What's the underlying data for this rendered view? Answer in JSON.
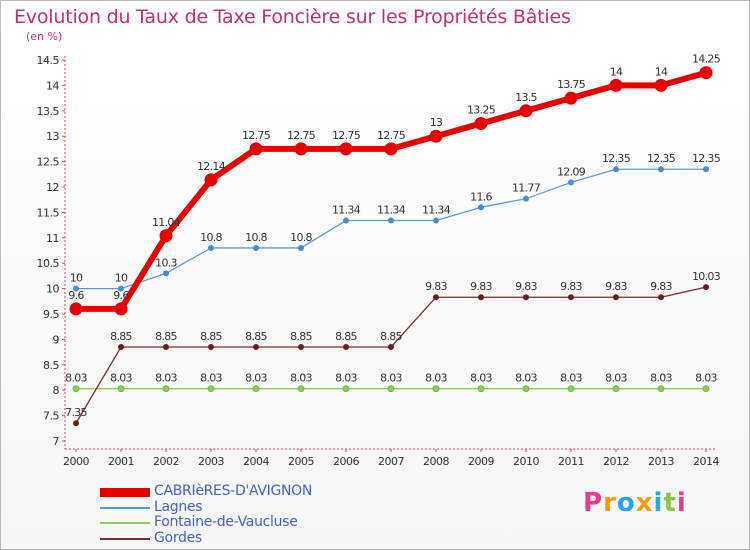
{
  "header": {
    "title": "Evolution du Taux de Taxe Foncière sur les Propriétés Bâties",
    "unit": "(en %)"
  },
  "logo": {
    "letters": [
      "P",
      "r",
      "o",
      "x",
      "i",
      "t",
      "i"
    ],
    "colors": [
      "#e63c8a",
      "#f39c12",
      "#27a9e1",
      "#f39c12",
      "#27a9e1",
      "#8dc63f",
      "#e63c8a"
    ]
  },
  "chart_data": {
    "type": "line",
    "x": [
      "2000",
      "2001",
      "2002",
      "2003",
      "2004",
      "2005",
      "2006",
      "2007",
      "2008",
      "2009",
      "2010",
      "2011",
      "2012",
      "2013",
      "2014"
    ],
    "ylim": [
      7,
      14.5
    ],
    "yticks": [
      "7",
      "7.5",
      "8",
      "8.5",
      "9",
      "9.5",
      "10",
      "10.5",
      "11",
      "11.5",
      "12",
      "12.5",
      "13",
      "13.5",
      "14",
      "14.5"
    ],
    "grid": false,
    "legend": "bottom-left",
    "series": [
      {
        "name": "CABRIèRES-D'AVIGNON",
        "color": "#e60000",
        "values": [
          9.6,
          9.6,
          11.04,
          12.14,
          12.75,
          12.75,
          12.75,
          12.75,
          13,
          13.25,
          13.5,
          13.75,
          14,
          14,
          14.25
        ],
        "labels": [
          "9.6",
          "9.6",
          "11.04",
          "12.14",
          "12.75",
          "12.75",
          "12.75",
          "12.75",
          "13",
          "13.25",
          "13.5",
          "13.75",
          "14",
          "14",
          "14.25"
        ]
      },
      {
        "name": "Lagnes",
        "color": "#5b9bd5",
        "values": [
          10,
          10,
          10.3,
          10.8,
          10.8,
          10.8,
          11.34,
          11.34,
          11.34,
          11.6,
          11.77,
          12.09,
          12.35,
          12.35,
          12.35
        ],
        "labels": [
          "10",
          "10",
          "10.3",
          "10.8",
          "10.8",
          "10.8",
          "11.34",
          "11.34",
          "11.34",
          "11.6",
          "11.77",
          "12.09",
          "12.35",
          "12.35",
          "12.35"
        ]
      },
      {
        "name": "Fontaine-de-Vaucluse",
        "color": "#8fce5b",
        "values": [
          8.03,
          8.03,
          8.03,
          8.03,
          8.03,
          8.03,
          8.03,
          8.03,
          8.03,
          8.03,
          8.03,
          8.03,
          8.03,
          8.03,
          8.03
        ],
        "labels": [
          "8.03",
          "8.03",
          "8.03",
          "8.03",
          "8.03",
          "8.03",
          "8.03",
          "8.03",
          "8.03",
          "8.03",
          "8.03",
          "8.03",
          "8.03",
          "8.03",
          "8.03"
        ]
      },
      {
        "name": "Gordes",
        "color": "#7a2b2b",
        "values": [
          7.35,
          8.85,
          8.85,
          8.85,
          8.85,
          8.85,
          8.85,
          8.85,
          9.83,
          9.83,
          9.83,
          9.83,
          9.83,
          9.83,
          10.03
        ],
        "labels": [
          "7.35",
          "8.85",
          "8.85",
          "8.85",
          "8.85",
          "8.85",
          "8.85",
          "8.85",
          "9.83",
          "9.83",
          "9.83",
          "9.83",
          "9.83",
          "9.83",
          "10.03"
        ]
      }
    ]
  }
}
